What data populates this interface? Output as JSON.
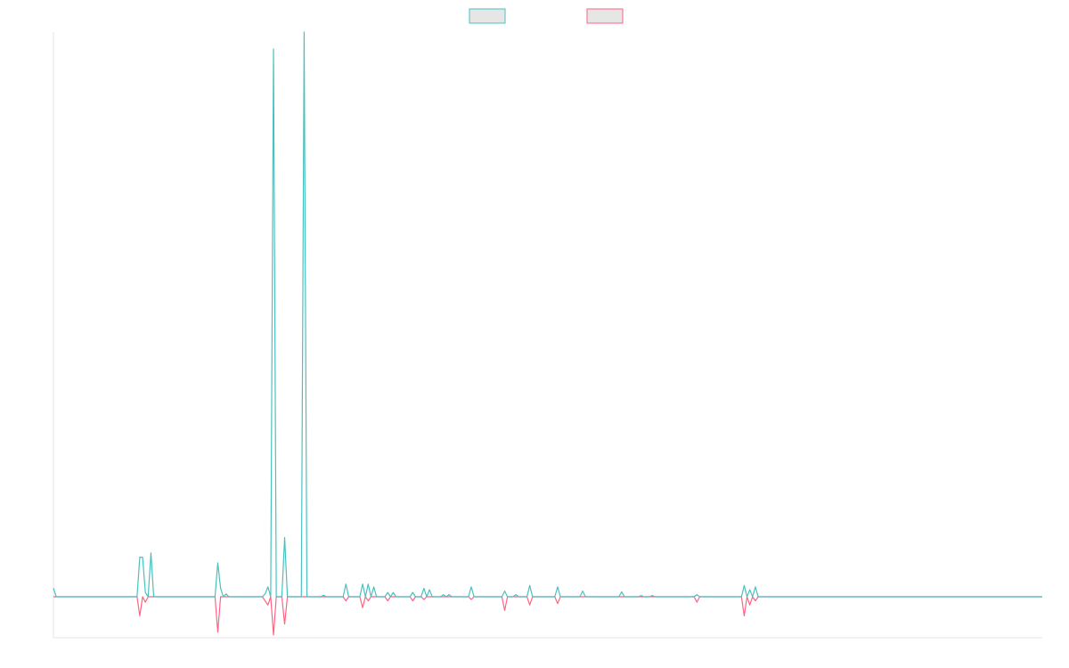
{
  "chart_data": {
    "type": "line",
    "title": "",
    "xlabel": "",
    "ylabel": "",
    "x_range": [
      0,
      355
    ],
    "ylim": [
      -300,
      4000
    ],
    "grid": false,
    "legend_position": "top-center",
    "series": [
      {
        "color": "#4bc0c0",
        "fill": "#e6e6e6",
        "points": [
          [
            0,
            60
          ],
          [
            1,
            0
          ],
          [
            30,
            0
          ],
          [
            31,
            280
          ],
          [
            32,
            280
          ],
          [
            33,
            30
          ],
          [
            34,
            0
          ],
          [
            35,
            310
          ],
          [
            36,
            0
          ],
          [
            58,
            0
          ],
          [
            59,
            240
          ],
          [
            60,
            60
          ],
          [
            61,
            0
          ],
          [
            62,
            20
          ],
          [
            63,
            0
          ],
          [
            75,
            0
          ],
          [
            76,
            20
          ],
          [
            77,
            70
          ],
          [
            78,
            0
          ],
          [
            79,
            3880
          ],
          [
            80,
            0
          ],
          [
            81,
            0
          ],
          [
            82,
            0
          ],
          [
            83,
            420
          ],
          [
            84,
            0
          ],
          [
            89,
            0
          ],
          [
            90,
            4000
          ],
          [
            91,
            0
          ],
          [
            96,
            0
          ],
          [
            97,
            10
          ],
          [
            98,
            0
          ],
          [
            104,
            0
          ],
          [
            105,
            90
          ],
          [
            106,
            0
          ],
          [
            110,
            0
          ],
          [
            111,
            90
          ],
          [
            112,
            0
          ],
          [
            113,
            90
          ],
          [
            114,
            0
          ],
          [
            115,
            70
          ],
          [
            116,
            0
          ],
          [
            119,
            0
          ],
          [
            120,
            30
          ],
          [
            121,
            0
          ],
          [
            122,
            30
          ],
          [
            123,
            0
          ],
          [
            128,
            0
          ],
          [
            129,
            30
          ],
          [
            130,
            0
          ],
          [
            132,
            0
          ],
          [
            133,
            60
          ],
          [
            134,
            0
          ],
          [
            135,
            50
          ],
          [
            136,
            0
          ],
          [
            139,
            0
          ],
          [
            140,
            15
          ],
          [
            141,
            0
          ],
          [
            142,
            15
          ],
          [
            143,
            0
          ],
          [
            149,
            0
          ],
          [
            150,
            70
          ],
          [
            151,
            0
          ],
          [
            161,
            0
          ],
          [
            162,
            40
          ],
          [
            163,
            0
          ],
          [
            165,
            0
          ],
          [
            166,
            15
          ],
          [
            167,
            0
          ],
          [
            170,
            0
          ],
          [
            171,
            80
          ],
          [
            172,
            0
          ],
          [
            180,
            0
          ],
          [
            181,
            70
          ],
          [
            182,
            0
          ],
          [
            189,
            0
          ],
          [
            190,
            40
          ],
          [
            191,
            0
          ],
          [
            203,
            0
          ],
          [
            204,
            35
          ],
          [
            205,
            0
          ],
          [
            210,
            0
          ],
          [
            211,
            8
          ],
          [
            212,
            0
          ],
          [
            214,
            0
          ],
          [
            215,
            8
          ],
          [
            216,
            0
          ],
          [
            230,
            0
          ],
          [
            231,
            15
          ],
          [
            232,
            0
          ],
          [
            247,
            0
          ],
          [
            248,
            80
          ],
          [
            249,
            0
          ],
          [
            250,
            50
          ],
          [
            251,
            0
          ],
          [
            252,
            70
          ],
          [
            253,
            0
          ],
          [
            355,
            0
          ]
        ]
      },
      {
        "color": "#ff6384",
        "fill": "#e6e6e6",
        "points": [
          [
            0,
            0
          ],
          [
            30,
            0
          ],
          [
            31,
            -140
          ],
          [
            32,
            0
          ],
          [
            33,
            -40
          ],
          [
            34,
            0
          ],
          [
            58,
            0
          ],
          [
            59,
            -260
          ],
          [
            60,
            0
          ],
          [
            75,
            0
          ],
          [
            77,
            -60
          ],
          [
            78,
            0
          ],
          [
            79,
            -280
          ],
          [
            80,
            0
          ],
          [
            82,
            0
          ],
          [
            83,
            -200
          ],
          [
            84,
            0
          ],
          [
            104,
            0
          ],
          [
            105,
            -30
          ],
          [
            106,
            0
          ],
          [
            110,
            0
          ],
          [
            111,
            -80
          ],
          [
            112,
            0
          ],
          [
            113,
            -30
          ],
          [
            114,
            0
          ],
          [
            119,
            0
          ],
          [
            120,
            -30
          ],
          [
            121,
            0
          ],
          [
            128,
            0
          ],
          [
            129,
            -30
          ],
          [
            130,
            0
          ],
          [
            132,
            0
          ],
          [
            133,
            -20
          ],
          [
            134,
            0
          ],
          [
            149,
            0
          ],
          [
            150,
            -20
          ],
          [
            151,
            0
          ],
          [
            161,
            0
          ],
          [
            162,
            -100
          ],
          [
            163,
            0
          ],
          [
            170,
            0
          ],
          [
            171,
            -60
          ],
          [
            172,
            0
          ],
          [
            180,
            0
          ],
          [
            181,
            -50
          ],
          [
            182,
            0
          ],
          [
            230,
            0
          ],
          [
            231,
            -40
          ],
          [
            232,
            0
          ],
          [
            247,
            0
          ],
          [
            248,
            -140
          ],
          [
            249,
            0
          ],
          [
            250,
            -60
          ],
          [
            251,
            0
          ],
          [
            252,
            -30
          ],
          [
            253,
            0
          ],
          [
            355,
            0
          ]
        ]
      }
    ]
  }
}
